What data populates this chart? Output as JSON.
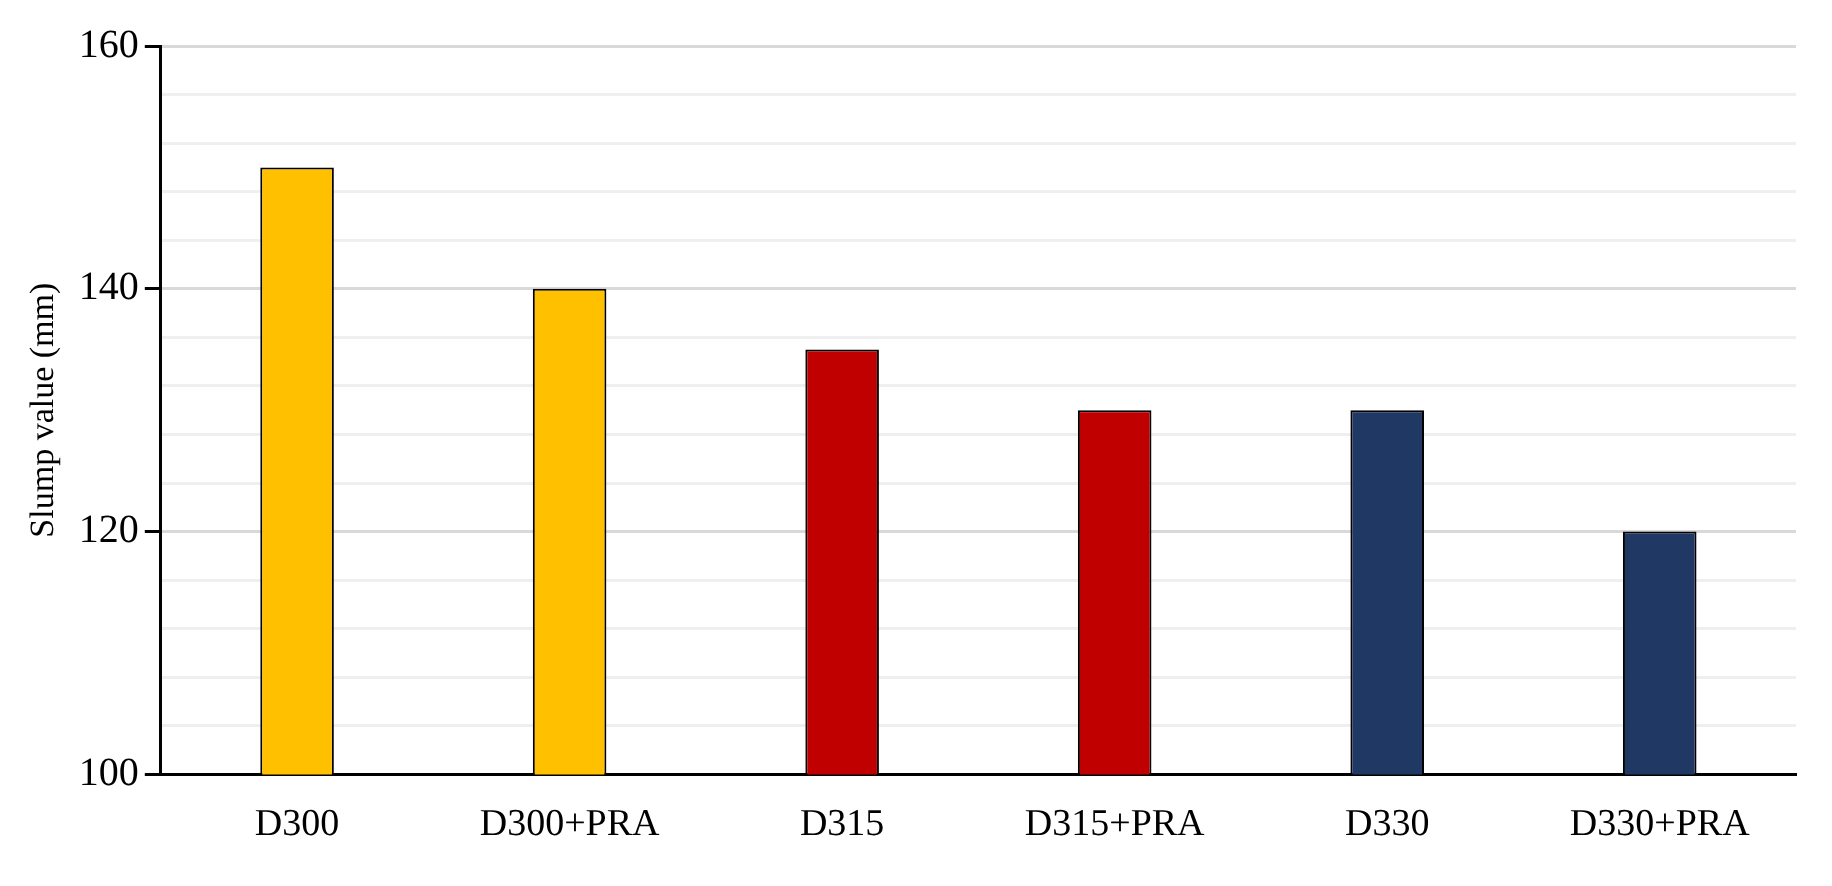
{
  "chart_data": {
    "type": "bar",
    "ylabel": "Slump value (mm)",
    "categories": [
      "D300",
      "D300+PRA",
      "D315",
      "D315+PRA",
      "D330",
      "D330+PRA"
    ],
    "values": [
      150,
      140,
      135,
      130,
      130,
      120
    ],
    "colors": [
      "#ffc000",
      "#ffc000",
      "#c00000",
      "#c00000",
      "#1f3864",
      "#1f3864"
    ],
    "ylim": [
      100,
      160
    ],
    "yticks": [
      100,
      {
        "value": 104,
        "label": null
      },
      {
        "value": 108,
        "label": null
      },
      {
        "value": 112,
        "label": null
      },
      {
        "value": 116,
        "label": null
      },
      120,
      {
        "value": 124,
        "label": null
      },
      {
        "value": 128,
        "label": null
      },
      {
        "value": 132,
        "label": null
      },
      {
        "value": 136,
        "label": null
      },
      140,
      {
        "value": 144,
        "label": null
      },
      {
        "value": 148,
        "label": null
      },
      {
        "value": 152,
        "label": null
      },
      {
        "value": 156,
        "label": null
      },
      160
    ],
    "grid": "y",
    "legend": false
  }
}
